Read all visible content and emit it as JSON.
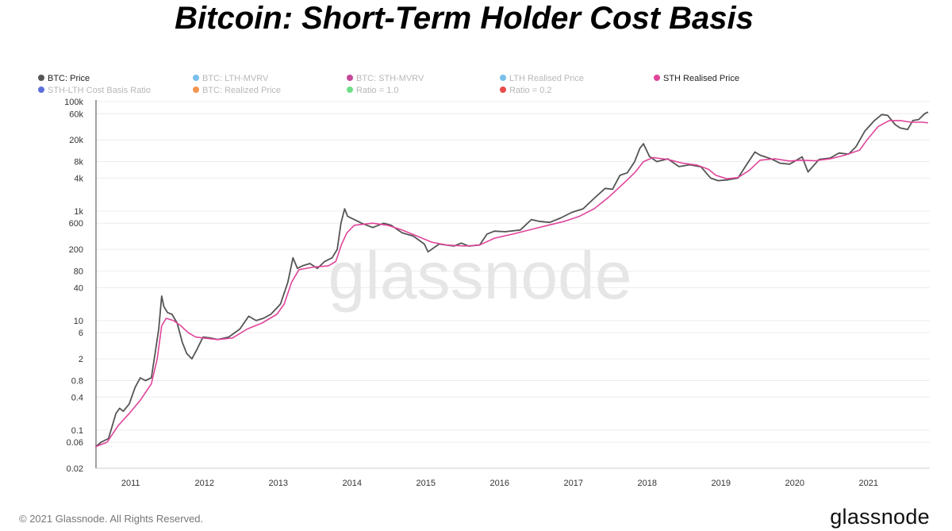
{
  "header": {
    "title": "Bitcoin: Short-Term Holder Cost Basis"
  },
  "footer": {
    "copyright": "© 2021 Glassnode. All Rights Reserved.",
    "brand": "glassnode"
  },
  "watermark": "glassnode",
  "chart_data": {
    "type": "line",
    "title": "Bitcoin: Short-Term Holder Cost Basis",
    "yscale": "log",
    "ylim": [
      0.02,
      100000
    ],
    "xlim": [
      2010.55,
      2021.85
    ],
    "grid": true,
    "legend_position": "top-left",
    "y_ticks": [
      {
        "value": 0.02,
        "label": "0.02"
      },
      {
        "value": 0.06,
        "label": "0.06"
      },
      {
        "value": 0.1,
        "label": "0.1"
      },
      {
        "value": 0.4,
        "label": "0.4"
      },
      {
        "value": 0.8,
        "label": "0.8"
      },
      {
        "value": 2,
        "label": "2"
      },
      {
        "value": 6,
        "label": "6"
      },
      {
        "value": 10,
        "label": "10"
      },
      {
        "value": 40,
        "label": "40"
      },
      {
        "value": 80,
        "label": "80"
      },
      {
        "value": 200,
        "label": "200"
      },
      {
        "value": 600,
        "label": "600"
      },
      {
        "value": 1000,
        "label": "1k"
      },
      {
        "value": 4000,
        "label": "4k"
      },
      {
        "value": 8000,
        "label": "8k"
      },
      {
        "value": 20000,
        "label": "20k"
      },
      {
        "value": 60000,
        "label": "60k"
      },
      {
        "value": 100000,
        "label": "100k"
      }
    ],
    "x_ticks": [
      {
        "value": 2011,
        "label": "2011"
      },
      {
        "value": 2012,
        "label": "2012"
      },
      {
        "value": 2013,
        "label": "2013"
      },
      {
        "value": 2014,
        "label": "2014"
      },
      {
        "value": 2015,
        "label": "2015"
      },
      {
        "value": 2016,
        "label": "2016"
      },
      {
        "value": 2017,
        "label": "2017"
      },
      {
        "value": 2018,
        "label": "2018"
      },
      {
        "value": 2019,
        "label": "2019"
      },
      {
        "value": 2020,
        "label": "2020"
      },
      {
        "value": 2021,
        "label": "2021"
      }
    ],
    "legend": [
      {
        "label": "BTC: Price",
        "color": "#555555",
        "active": true
      },
      {
        "label": "BTC: LTH-MVRV",
        "color": "#6cb8ea",
        "active": false
      },
      {
        "label": "BTC: STH-MVRV",
        "color": "#c0358f",
        "active": false
      },
      {
        "label": "LTH Realised Price",
        "color": "#6cb8ea",
        "active": false
      },
      {
        "label": "STH Realised Price",
        "color": "#e0449a",
        "active": true
      },
      {
        "label": "STH-LTH Cost Basis Ratio",
        "color": "#4a5fd6",
        "active": false
      },
      {
        "label": "BTC: Realized Price",
        "color": "#f08a3c",
        "active": false
      },
      {
        "label": "Ratio = 1.0",
        "color": "#5fdc7a",
        "active": false
      },
      {
        "label": "Ratio = 0.2",
        "color": "#e53935",
        "active": false
      }
    ],
    "series": [
      {
        "name": "BTC: Price",
        "color": "#555555",
        "points": [
          [
            2010.55,
            0.05
          ],
          [
            2010.62,
            0.06
          ],
          [
            2010.72,
            0.07
          ],
          [
            2010.82,
            0.2
          ],
          [
            2010.87,
            0.25
          ],
          [
            2010.92,
            0.22
          ],
          [
            2011.0,
            0.3
          ],
          [
            2011.08,
            0.6
          ],
          [
            2011.15,
            0.9
          ],
          [
            2011.22,
            0.8
          ],
          [
            2011.3,
            0.9
          ],
          [
            2011.36,
            3
          ],
          [
            2011.4,
            7
          ],
          [
            2011.44,
            28
          ],
          [
            2011.47,
            18
          ],
          [
            2011.52,
            14
          ],
          [
            2011.58,
            13
          ],
          [
            2011.65,
            9
          ],
          [
            2011.72,
            4
          ],
          [
            2011.78,
            2.5
          ],
          [
            2011.85,
            2
          ],
          [
            2011.92,
            3
          ],
          [
            2012.0,
            5
          ],
          [
            2012.1,
            4.8
          ],
          [
            2012.2,
            4.5
          ],
          [
            2012.35,
            5
          ],
          [
            2012.5,
            7
          ],
          [
            2012.62,
            12
          ],
          [
            2012.72,
            10
          ],
          [
            2012.82,
            11
          ],
          [
            2012.92,
            13
          ],
          [
            2013.05,
            20
          ],
          [
            2013.15,
            50
          ],
          [
            2013.22,
            140
          ],
          [
            2013.28,
            90
          ],
          [
            2013.35,
            100
          ],
          [
            2013.45,
            110
          ],
          [
            2013.55,
            90
          ],
          [
            2013.65,
            120
          ],
          [
            2013.75,
            140
          ],
          [
            2013.82,
            200
          ],
          [
            2013.87,
            600
          ],
          [
            2013.92,
            1100
          ],
          [
            2013.96,
            800
          ],
          [
            2014.05,
            700
          ],
          [
            2014.15,
            600
          ],
          [
            2014.3,
            500
          ],
          [
            2014.45,
            600
          ],
          [
            2014.55,
            550
          ],
          [
            2014.7,
            400
          ],
          [
            2014.85,
            350
          ],
          [
            2015.0,
            250
          ],
          [
            2015.05,
            180
          ],
          [
            2015.2,
            250
          ],
          [
            2015.4,
            230
          ],
          [
            2015.5,
            260
          ],
          [
            2015.6,
            230
          ],
          [
            2015.75,
            240
          ],
          [
            2015.85,
            380
          ],
          [
            2015.95,
            430
          ],
          [
            2016.1,
            420
          ],
          [
            2016.3,
            450
          ],
          [
            2016.45,
            700
          ],
          [
            2016.55,
            650
          ],
          [
            2016.7,
            620
          ],
          [
            2016.85,
            750
          ],
          [
            2017.0,
            950
          ],
          [
            2017.15,
            1100
          ],
          [
            2017.3,
            1700
          ],
          [
            2017.45,
            2600
          ],
          [
            2017.55,
            2500
          ],
          [
            2017.65,
            4500
          ],
          [
            2017.75,
            5000
          ],
          [
            2017.85,
            8000
          ],
          [
            2017.92,
            14000
          ],
          [
            2017.97,
            17000
          ],
          [
            2018.05,
            10000
          ],
          [
            2018.15,
            8000
          ],
          [
            2018.3,
            9000
          ],
          [
            2018.45,
            6500
          ],
          [
            2018.6,
            7000
          ],
          [
            2018.75,
            6400
          ],
          [
            2018.88,
            4000
          ],
          [
            2018.98,
            3600
          ],
          [
            2019.1,
            3700
          ],
          [
            2019.25,
            4000
          ],
          [
            2019.35,
            6500
          ],
          [
            2019.48,
            12000
          ],
          [
            2019.55,
            10500
          ],
          [
            2019.7,
            9000
          ],
          [
            2019.82,
            7500
          ],
          [
            2019.95,
            7200
          ],
          [
            2020.12,
            9800
          ],
          [
            2020.2,
            5200
          ],
          [
            2020.35,
            8800
          ],
          [
            2020.5,
            9300
          ],
          [
            2020.62,
            11500
          ],
          [
            2020.75,
            11000
          ],
          [
            2020.85,
            15000
          ],
          [
            2020.97,
            29000
          ],
          [
            2021.1,
            45000
          ],
          [
            2021.2,
            58000
          ],
          [
            2021.28,
            56000
          ],
          [
            2021.38,
            38000
          ],
          [
            2021.45,
            33000
          ],
          [
            2021.55,
            31000
          ],
          [
            2021.62,
            45000
          ],
          [
            2021.7,
            47000
          ],
          [
            2021.78,
            60000
          ],
          [
            2021.82,
            64000
          ]
        ]
      },
      {
        "name": "STH Realised Price",
        "color": "#e0449a",
        "points": [
          [
            2010.55,
            0.05
          ],
          [
            2010.7,
            0.06
          ],
          [
            2010.85,
            0.12
          ],
          [
            2011.0,
            0.2
          ],
          [
            2011.15,
            0.35
          ],
          [
            2011.3,
            0.7
          ],
          [
            2011.38,
            2
          ],
          [
            2011.44,
            8
          ],
          [
            2011.5,
            11
          ],
          [
            2011.6,
            10
          ],
          [
            2011.7,
            8
          ],
          [
            2011.8,
            6
          ],
          [
            2011.9,
            5
          ],
          [
            2012.0,
            4.8
          ],
          [
            2012.2,
            4.5
          ],
          [
            2012.4,
            4.8
          ],
          [
            2012.6,
            7
          ],
          [
            2012.8,
            9
          ],
          [
            2013.0,
            13
          ],
          [
            2013.1,
            20
          ],
          [
            2013.2,
            50
          ],
          [
            2013.3,
            85
          ],
          [
            2013.5,
            95
          ],
          [
            2013.7,
            100
          ],
          [
            2013.8,
            120
          ],
          [
            2013.88,
            250
          ],
          [
            2013.95,
            400
          ],
          [
            2014.05,
            550
          ],
          [
            2014.3,
            600
          ],
          [
            2014.5,
            550
          ],
          [
            2014.7,
            450
          ],
          [
            2014.9,
            350
          ],
          [
            2015.1,
            270
          ],
          [
            2015.3,
            240
          ],
          [
            2015.55,
            230
          ],
          [
            2015.75,
            240
          ],
          [
            2015.95,
            320
          ],
          [
            2016.2,
            380
          ],
          [
            2016.5,
            480
          ],
          [
            2016.7,
            560
          ],
          [
            2016.9,
            650
          ],
          [
            2017.1,
            800
          ],
          [
            2017.3,
            1100
          ],
          [
            2017.5,
            1800
          ],
          [
            2017.7,
            3200
          ],
          [
            2017.85,
            5000
          ],
          [
            2017.97,
            8000
          ],
          [
            2018.1,
            9500
          ],
          [
            2018.3,
            8800
          ],
          [
            2018.5,
            7500
          ],
          [
            2018.7,
            6900
          ],
          [
            2018.85,
            5800
          ],
          [
            2018.95,
            4500
          ],
          [
            2019.1,
            3900
          ],
          [
            2019.25,
            4100
          ],
          [
            2019.4,
            5500
          ],
          [
            2019.55,
            8500
          ],
          [
            2019.75,
            9000
          ],
          [
            2019.95,
            8200
          ],
          [
            2020.1,
            8500
          ],
          [
            2020.3,
            8300
          ],
          [
            2020.5,
            9000
          ],
          [
            2020.7,
            10500
          ],
          [
            2020.9,
            13000
          ],
          [
            2021.0,
            20000
          ],
          [
            2021.15,
            35000
          ],
          [
            2021.3,
            45000
          ],
          [
            2021.45,
            45000
          ],
          [
            2021.6,
            42000
          ],
          [
            2021.75,
            42000
          ],
          [
            2021.82,
            41000
          ]
        ]
      }
    ]
  }
}
